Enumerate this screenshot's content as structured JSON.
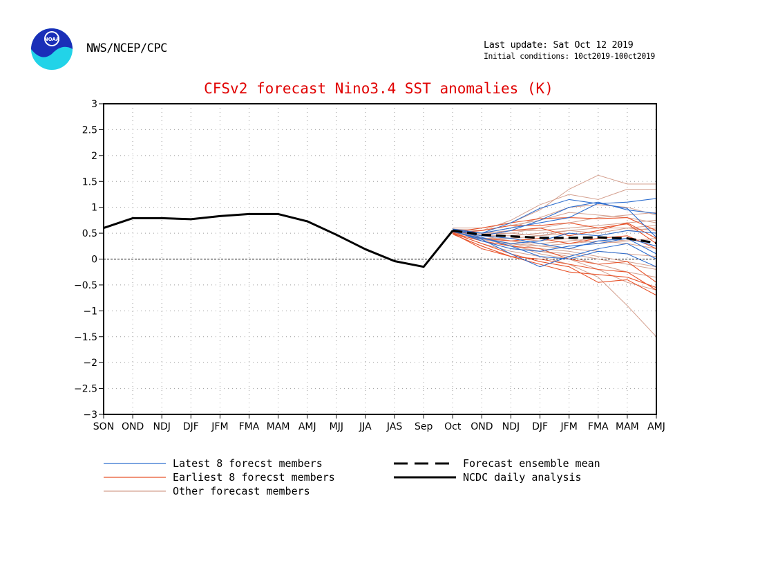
{
  "header": {
    "org": "NWS/NCEP/CPC",
    "last_update": "Last update: Sat Oct 12 2019",
    "initial_conditions": "Initial conditions: 10ct2019-100ct2019",
    "logo_text": "NOAA"
  },
  "chart_data": {
    "type": "line",
    "title": "CFSv2 forecast Nino3.4 SST anomalies (K)",
    "categories": [
      "SON",
      "OND",
      "NDJ",
      "DJF",
      "JFM",
      "FMA",
      "MAM",
      "AMJ",
      "MJJ",
      "JJA",
      "JAS",
      "Sep",
      "Oct",
      "OND",
      "NDJ",
      "DJF",
      "JFM",
      "FMA",
      "MAM",
      "AMJ"
    ],
    "yticks": [
      "3",
      "2.5",
      "2",
      "1.5",
      "1",
      "0.5",
      "0",
      "−0.5",
      "−1",
      "−1.5",
      "−2",
      "−2.5",
      "−3"
    ],
    "ylim": [
      -3,
      3
    ],
    "grid": true,
    "legend_position": "bottom",
    "colors": {
      "latest": "#2f6fcf",
      "earliest": "#e8532a",
      "other": "#d4a08f",
      "mean": "#000000",
      "analysis": "#000000",
      "title": "#e00000"
    },
    "analysis": {
      "name": "NCDC daily analysis",
      "x": [
        0,
        1,
        2,
        3,
        4,
        5,
        6,
        7,
        8,
        9,
        10,
        11,
        12
      ],
      "values": [
        0.6,
        0.79,
        0.79,
        0.77,
        0.83,
        0.87,
        0.87,
        0.73,
        0.47,
        0.19,
        -0.04,
        -0.15,
        0.55
      ]
    },
    "ensemble_mean": {
      "name": "Forecast ensemble mean",
      "x": [
        12,
        13,
        14,
        15,
        16,
        17,
        18,
        19
      ],
      "values": [
        0.55,
        0.47,
        0.44,
        0.41,
        0.41,
        0.42,
        0.4,
        0.31
      ]
    },
    "series": [
      {
        "name": "Latest 8 forecst members",
        "group": "latest",
        "members": [
          [
            0.58,
            0.5,
            0.7,
            0.98,
            1.15,
            1.07,
            1.1,
            1.17
          ],
          [
            0.55,
            0.45,
            0.55,
            0.75,
            1.0,
            1.1,
            0.95,
            0.88
          ],
          [
            0.56,
            0.5,
            0.6,
            0.7,
            0.8,
            1.08,
            0.98,
            0.42
          ],
          [
            0.53,
            0.4,
            0.3,
            0.35,
            0.5,
            0.45,
            0.55,
            0.5
          ],
          [
            0.55,
            0.35,
            0.2,
            0.15,
            0.25,
            0.3,
            0.4,
            0.1
          ],
          [
            0.54,
            0.38,
            0.1,
            -0.15,
            0.05,
            0.2,
            0.3,
            0.0
          ],
          [
            0.57,
            0.42,
            0.25,
            0.05,
            0.0,
            0.15,
            0.1,
            -0.15
          ],
          [
            0.55,
            0.45,
            0.4,
            0.3,
            0.2,
            0.35,
            0.4,
            0.25
          ]
        ]
      },
      {
        "name": "Earliest 8 forecst members",
        "group": "earliest",
        "members": [
          [
            0.52,
            0.6,
            0.7,
            0.78,
            0.8,
            0.78,
            0.8,
            0.55
          ],
          [
            0.5,
            0.55,
            0.65,
            0.65,
            0.7,
            0.6,
            0.68,
            0.3
          ],
          [
            0.5,
            0.3,
            0.1,
            -0.05,
            -0.15,
            -0.45,
            -0.4,
            -0.7
          ],
          [
            0.48,
            0.25,
            0.05,
            -0.1,
            -0.25,
            -0.3,
            -0.35,
            -0.55
          ],
          [
            0.5,
            0.35,
            0.25,
            0.2,
            0.0,
            -0.1,
            -0.05,
            -0.45
          ],
          [
            0.52,
            0.4,
            0.35,
            0.4,
            0.3,
            0.4,
            0.45,
            0.2
          ],
          [
            0.55,
            0.45,
            0.55,
            0.6,
            0.45,
            0.55,
            0.7,
            0.4
          ],
          [
            0.5,
            0.2,
            0.05,
            0.0,
            -0.1,
            -0.2,
            -0.25,
            -0.6
          ]
        ]
      },
      {
        "name": "Other forecast members",
        "group": "other",
        "members": [
          [
            0.6,
            0.6,
            0.7,
            0.95,
            1.35,
            1.62,
            1.45,
            1.45
          ],
          [
            0.58,
            0.55,
            0.75,
            1.05,
            1.25,
            1.15,
            1.35,
            1.35
          ],
          [
            0.56,
            0.5,
            0.6,
            0.8,
            1.0,
            1.05,
            1.0,
            0.85
          ],
          [
            0.55,
            0.5,
            0.5,
            0.6,
            0.7,
            0.8,
            0.85,
            0.9
          ],
          [
            0.54,
            0.45,
            0.45,
            0.5,
            0.55,
            0.6,
            0.6,
            0.65
          ],
          [
            0.53,
            0.4,
            0.4,
            0.45,
            0.5,
            0.45,
            0.55,
            0.6
          ],
          [
            0.52,
            0.45,
            0.4,
            0.35,
            0.4,
            0.3,
            0.35,
            0.4
          ],
          [
            0.51,
            0.4,
            0.3,
            0.25,
            0.3,
            0.35,
            0.3,
            0.2
          ],
          [
            0.5,
            0.35,
            0.2,
            0.15,
            0.1,
            0.0,
            -0.1,
            -0.2
          ],
          [
            0.5,
            0.3,
            0.15,
            0.05,
            -0.1,
            -0.35,
            -0.9,
            -1.5
          ],
          [
            0.55,
            0.4,
            0.25,
            0.15,
            0.05,
            -0.1,
            -0.25,
            -0.35
          ],
          [
            0.57,
            0.5,
            0.55,
            0.55,
            0.6,
            0.65,
            0.7,
            0.75
          ],
          [
            0.56,
            0.45,
            0.35,
            0.3,
            0.35,
            0.4,
            0.35,
            0.4
          ],
          [
            0.54,
            0.4,
            0.35,
            0.25,
            0.2,
            0.15,
            0.1,
            0.05
          ],
          [
            0.55,
            0.48,
            0.5,
            0.45,
            0.55,
            0.5,
            0.6,
            0.55
          ],
          [
            0.53,
            0.42,
            0.3,
            0.2,
            0.15,
            0.05,
            -0.05,
            -0.15
          ],
          [
            0.52,
            0.38,
            0.28,
            0.1,
            0.0,
            -0.2,
            -0.45,
            -0.6
          ],
          [
            0.56,
            0.55,
            0.65,
            0.75,
            0.9,
            0.85,
            0.8,
            0.7
          ]
        ]
      }
    ],
    "legend": [
      {
        "label": "Latest 8 forecst members",
        "style": "latest"
      },
      {
        "label": "Earliest 8 forecst members",
        "style": "earliest"
      },
      {
        "label": "Other forecast members",
        "style": "other"
      },
      {
        "label": "Forecast ensemble mean",
        "style": "mean"
      },
      {
        "label": "NCDC daily analysis",
        "style": "analysis"
      }
    ]
  }
}
